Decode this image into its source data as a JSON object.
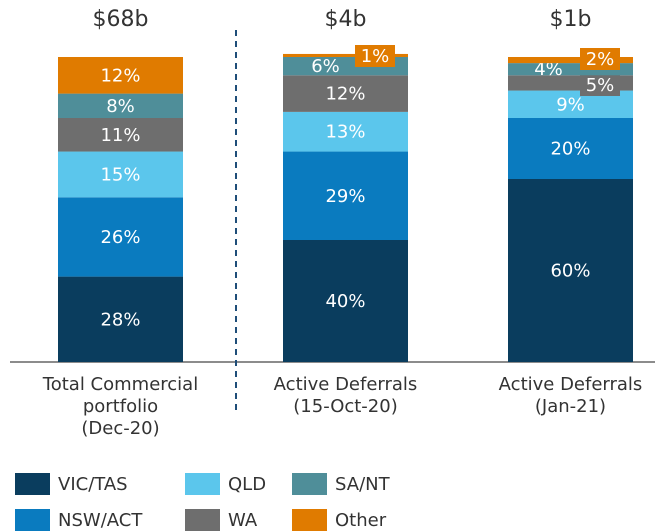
{
  "chart_data": {
    "type": "stacked-bar",
    "annotations": [
      "$68b",
      "$4b",
      "$1b"
    ],
    "categories": [
      "Total Commercial\nportfolio\n(Dec-20)",
      "Active Deferrals\n(15-Oct-20)",
      "Active Deferrals\n(Jan-21)"
    ],
    "series": [
      {
        "name": "VIC/TAS",
        "color": "#0a3d5e",
        "values": [
          28,
          40,
          60
        ],
        "value_labels": [
          "28%",
          "40%",
          "60%"
        ]
      },
      {
        "name": "NSW/ACT",
        "color": "#0a7bbf",
        "values": [
          26,
          29,
          20
        ],
        "value_labels": [
          "26%",
          "29%",
          "20%"
        ]
      },
      {
        "name": "QLD",
        "color": "#5bc6ec",
        "values": [
          15,
          13,
          9
        ],
        "value_labels": [
          "15%",
          "13%",
          "9%"
        ]
      },
      {
        "name": "WA",
        "color": "#6e6e6e",
        "values": [
          11,
          12,
          5
        ],
        "value_labels": [
          "11%",
          "12%",
          "5%"
        ]
      },
      {
        "name": "SA/NT",
        "color": "#4f8e99",
        "values": [
          8,
          6,
          4
        ],
        "value_labels": [
          "8%",
          "6%",
          "4%"
        ]
      },
      {
        "name": "Other",
        "color": "#e07b00",
        "values": [
          12,
          1,
          2
        ],
        "value_labels": [
          "12%",
          "1%",
          "2%"
        ]
      }
    ]
  }
}
